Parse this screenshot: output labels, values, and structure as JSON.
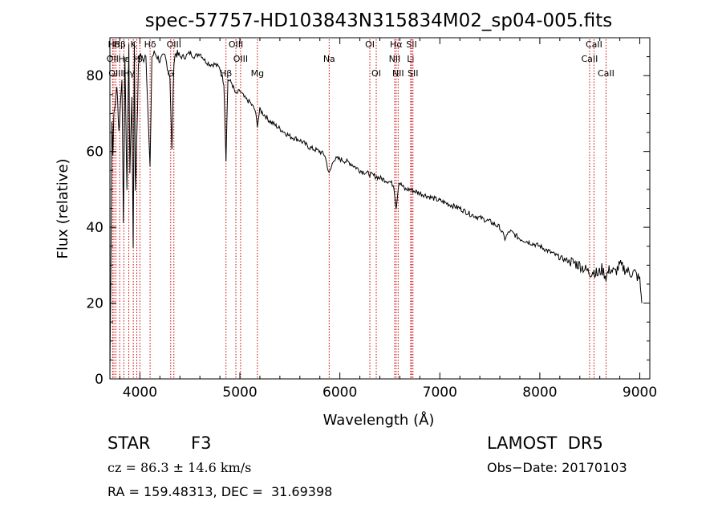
{
  "chart_data": {
    "type": "line",
    "title": "spec-57757-HD103843N315834M02_sp04-005.fits",
    "xlabel": "Wavelength (Å)",
    "ylabel": "Flux (relative)",
    "xlim": [
      3700,
      9100
    ],
    "ylim": [
      0,
      90
    ],
    "xticks": [
      4000,
      5000,
      6000,
      7000,
      8000,
      9000
    ],
    "yticks": [
      0,
      20,
      40,
      60,
      80
    ],
    "grid": false,
    "series": [
      {
        "x": [
          3700,
          3710,
          3720,
          3730,
          3740,
          3760,
          3770,
          3790,
          3800,
          3820,
          3835,
          3850,
          3870,
          3889,
          3900,
          3920,
          3933,
          3945,
          3955,
          3968,
          3985,
          4000,
          4030,
          4060,
          4101,
          4120,
          4150,
          4200,
          4250,
          4300,
          4320,
          4340,
          4360,
          4400,
          4450,
          4500,
          4550,
          4600,
          4650,
          4700,
          4750,
          4800,
          4840,
          4861,
          4880,
          4920,
          4960,
          5000,
          5050,
          5100,
          5150,
          5175,
          5200,
          5300,
          5400,
          5500,
          5600,
          5700,
          5800,
          5850,
          5893,
          5940,
          6000,
          6100,
          6200,
          6300,
          6400,
          6500,
          6540,
          6563,
          6590,
          6650,
          6700,
          6800,
          6900,
          7000,
          7100,
          7200,
          7300,
          7400,
          7500,
          7600,
          7650,
          7700,
          7800,
          7900,
          8000,
          8100,
          8200,
          8300,
          8400,
          8450,
          8498,
          8542,
          8580,
          8620,
          8662,
          8700,
          8750,
          8800,
          8850,
          8900,
          8950,
          9000,
          9020
        ],
        "y": [
          0,
          30,
          68,
          60,
          70,
          74,
          78,
          65,
          70,
          80,
          40,
          85,
          50,
          88,
          55,
          75,
          35,
          88,
          50,
          62,
          82,
          86,
          84,
          86,
          55,
          85,
          86,
          84,
          85,
          80,
          60,
          84,
          86,
          85,
          85,
          86,
          85,
          86,
          84,
          83,
          83,
          82,
          78,
          58,
          79,
          78,
          75,
          76,
          74,
          73,
          71,
          67,
          71,
          68,
          66,
          64,
          63,
          61,
          60,
          59,
          54,
          58,
          58,
          57,
          55,
          54,
          53,
          52,
          51,
          45,
          52,
          50,
          50,
          49,
          48,
          47,
          46,
          45,
          43.5,
          42.5,
          41.5,
          40,
          37,
          39,
          37,
          36,
          35,
          33.5,
          32,
          31,
          30,
          29,
          28,
          28.5,
          27.5,
          29,
          27,
          29,
          28,
          30,
          29,
          28,
          28,
          26,
          20
        ]
      }
    ],
    "lines": [
      {
        "label": "Hδ",
        "x": 3740,
        "row": 0
      },
      {
        "label": "OII",
        "x": 3727,
        "row": 1
      },
      {
        "label": "OIII",
        "x": 3760,
        "row": 2
      },
      {
        "label": "Hβ",
        "x": 3798,
        "row": 0
      },
      {
        "label": "Hε",
        "x": 3840,
        "row": 1
      },
      {
        "label": "K",
        "x": 3934,
        "row": 0
      },
      {
        "label": "H",
        "x": 3969,
        "row": 1
      },
      {
        "label": "Hγ",
        "x": 3889,
        "row": 2
      },
      {
        "label": "Hδ",
        "x": 4102,
        "row": 0
      },
      {
        "label": "S",
        "x": 4000,
        "row": 1
      },
      {
        "label": "OIII",
        "x": 4340,
        "row": 0
      },
      {
        "label": "G",
        "x": 4308,
        "row": 2
      },
      {
        "label": "OIII",
        "x": 4960,
        "row": 0
      },
      {
        "label": "OIII",
        "x": 5007,
        "row": 1
      },
      {
        "label": "Hβ",
        "x": 4861,
        "row": 2
      },
      {
        "label": "Mg",
        "x": 5175,
        "row": 2
      },
      {
        "label": "Na",
        "x": 5893,
        "row": 1
      },
      {
        "label": "OI",
        "x": 6300,
        "row": 0
      },
      {
        "label": "OI",
        "x": 6364,
        "row": 2
      },
      {
        "label": "Hα",
        "x": 6563,
        "row": 0
      },
      {
        "label": "NII",
        "x": 6548,
        "row": 1
      },
      {
        "label": "NII",
        "x": 6583,
        "row": 2
      },
      {
        "label": "SII",
        "x": 6717,
        "row": 0
      },
      {
        "label": "Li",
        "x": 6708,
        "row": 1
      },
      {
        "label": "SII",
        "x": 6731,
        "row": 2
      },
      {
        "label": "CaII",
        "x": 8542,
        "row": 0
      },
      {
        "label": "CaII",
        "x": 8498,
        "row": 1
      },
      {
        "label": "CaII",
        "x": 8662,
        "row": 2
      }
    ]
  },
  "info": {
    "object_class": "STAR",
    "subclass": "F3",
    "survey": "LAMOST  DR5",
    "cz": "cz = 86.3 ± 14.6 km/s",
    "obs_date": "Obs−Date: 20170103",
    "coords": "RA = 159.48313, DEC =  31.69398"
  }
}
